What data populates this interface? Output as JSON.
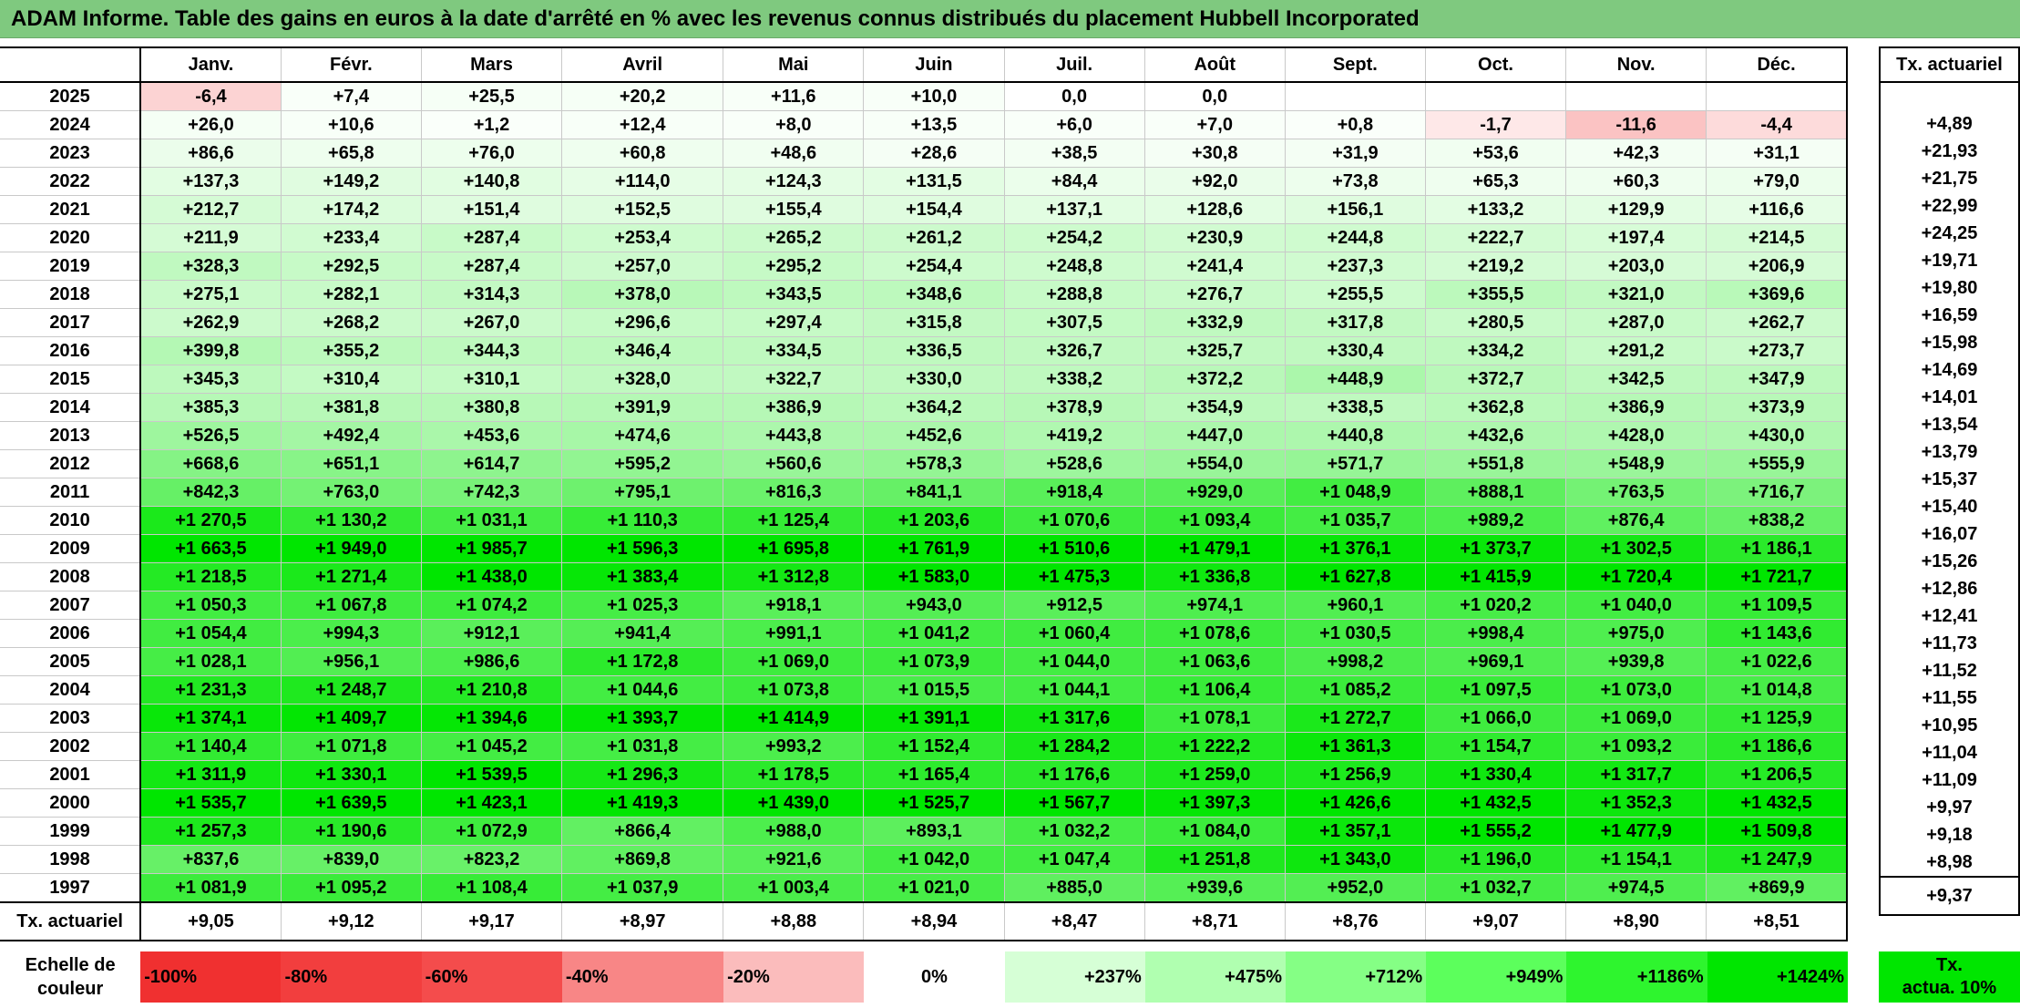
{
  "title": "ADAM Informe. Table des gains en euros à la date d'arrêté en % avec les revenus connus distribués du placement Hubbell Incorporated",
  "chart_data": {
    "type": "heatmap",
    "columns": [
      "Janv.",
      "Févr.",
      "Mars",
      "Avril",
      "Mai",
      "Juin",
      "Juil.",
      "Août",
      "Sept.",
      "Oct.",
      "Nov.",
      "Déc."
    ],
    "tx_header": "Tx. actuariel",
    "rows": [
      {
        "year": "2025",
        "values": [
          "-6,4",
          "+7,4",
          "+25,5",
          "+20,2",
          "+11,6",
          "+10,0",
          "0,0",
          "0,0",
          "",
          "",
          "",
          ""
        ],
        "tx": ""
      },
      {
        "year": "2024",
        "values": [
          "+26,0",
          "+10,6",
          "+1,2",
          "+12,4",
          "+8,0",
          "+13,5",
          "+6,0",
          "+7,0",
          "+0,8",
          "-1,7",
          "-11,6",
          "-4,4"
        ],
        "tx": "+4,89"
      },
      {
        "year": "2023",
        "values": [
          "+86,6",
          "+65,8",
          "+76,0",
          "+60,8",
          "+48,6",
          "+28,6",
          "+38,5",
          "+30,8",
          "+31,9",
          "+53,6",
          "+42,3",
          "+31,1"
        ],
        "tx": "+21,93"
      },
      {
        "year": "2022",
        "values": [
          "+137,3",
          "+149,2",
          "+140,8",
          "+114,0",
          "+124,3",
          "+131,5",
          "+84,4",
          "+92,0",
          "+73,8",
          "+65,3",
          "+60,3",
          "+79,0"
        ],
        "tx": "+21,75"
      },
      {
        "year": "2021",
        "values": [
          "+212,7",
          "+174,2",
          "+151,4",
          "+152,5",
          "+155,4",
          "+154,4",
          "+137,1",
          "+128,6",
          "+156,1",
          "+133,2",
          "+129,9",
          "+116,6"
        ],
        "tx": "+22,99"
      },
      {
        "year": "2020",
        "values": [
          "+211,9",
          "+233,4",
          "+287,4",
          "+253,4",
          "+265,2",
          "+261,2",
          "+254,2",
          "+230,9",
          "+244,8",
          "+222,7",
          "+197,4",
          "+214,5"
        ],
        "tx": "+24,25"
      },
      {
        "year": "2019",
        "values": [
          "+328,3",
          "+292,5",
          "+287,4",
          "+257,0",
          "+295,2",
          "+254,4",
          "+248,8",
          "+241,4",
          "+237,3",
          "+219,2",
          "+203,0",
          "+206,9"
        ],
        "tx": "+19,71"
      },
      {
        "year": "2018",
        "values": [
          "+275,1",
          "+282,1",
          "+314,3",
          "+378,0",
          "+343,5",
          "+348,6",
          "+288,8",
          "+276,7",
          "+255,5",
          "+355,5",
          "+321,0",
          "+369,6"
        ],
        "tx": "+19,80"
      },
      {
        "year": "2017",
        "values": [
          "+262,9",
          "+268,2",
          "+267,0",
          "+296,6",
          "+297,4",
          "+315,8",
          "+307,5",
          "+332,9",
          "+317,8",
          "+280,5",
          "+287,0",
          "+262,7"
        ],
        "tx": "+16,59"
      },
      {
        "year": "2016",
        "values": [
          "+399,8",
          "+355,2",
          "+344,3",
          "+346,4",
          "+334,5",
          "+336,5",
          "+326,7",
          "+325,7",
          "+330,4",
          "+334,2",
          "+291,2",
          "+273,7"
        ],
        "tx": "+15,98"
      },
      {
        "year": "2015",
        "values": [
          "+345,3",
          "+310,4",
          "+310,1",
          "+328,0",
          "+322,7",
          "+330,0",
          "+338,2",
          "+372,2",
          "+448,9",
          "+372,7",
          "+342,5",
          "+347,9"
        ],
        "tx": "+14,69"
      },
      {
        "year": "2014",
        "values": [
          "+385,3",
          "+381,8",
          "+380,8",
          "+391,9",
          "+386,9",
          "+364,2",
          "+378,9",
          "+354,9",
          "+338,5",
          "+362,8",
          "+386,9",
          "+373,9"
        ],
        "tx": "+14,01"
      },
      {
        "year": "2013",
        "values": [
          "+526,5",
          "+492,4",
          "+453,6",
          "+474,6",
          "+443,8",
          "+452,6",
          "+419,2",
          "+447,0",
          "+440,8",
          "+432,6",
          "+428,0",
          "+430,0"
        ],
        "tx": "+13,54"
      },
      {
        "year": "2012",
        "values": [
          "+668,6",
          "+651,1",
          "+614,7",
          "+595,2",
          "+560,6",
          "+578,3",
          "+528,6",
          "+554,0",
          "+571,7",
          "+551,8",
          "+548,9",
          "+555,9"
        ],
        "tx": "+13,79"
      },
      {
        "year": "2011",
        "values": [
          "+842,3",
          "+763,0",
          "+742,3",
          "+795,1",
          "+816,3",
          "+841,1",
          "+918,4",
          "+929,0",
          "+1 048,9",
          "+888,1",
          "+763,5",
          "+716,7"
        ],
        "tx": "+15,37"
      },
      {
        "year": "2010",
        "values": [
          "+1 270,5",
          "+1 130,2",
          "+1 031,1",
          "+1 110,3",
          "+1 125,4",
          "+1 203,6",
          "+1 070,6",
          "+1 093,4",
          "+1 035,7",
          "+989,2",
          "+876,4",
          "+838,2"
        ],
        "tx": "+15,40"
      },
      {
        "year": "2009",
        "values": [
          "+1 663,5",
          "+1 949,0",
          "+1 985,7",
          "+1 596,3",
          "+1 695,8",
          "+1 761,9",
          "+1 510,6",
          "+1 479,1",
          "+1 376,1",
          "+1 373,7",
          "+1 302,5",
          "+1 186,1"
        ],
        "tx": "+16,07"
      },
      {
        "year": "2008",
        "values": [
          "+1 218,5",
          "+1 271,4",
          "+1 438,0",
          "+1 383,4",
          "+1 312,8",
          "+1 583,0",
          "+1 475,3",
          "+1 336,8",
          "+1 627,8",
          "+1 415,9",
          "+1 720,4",
          "+1 721,7"
        ],
        "tx": "+15,26"
      },
      {
        "year": "2007",
        "values": [
          "+1 050,3",
          "+1 067,8",
          "+1 074,2",
          "+1 025,3",
          "+918,1",
          "+943,0",
          "+912,5",
          "+974,1",
          "+960,1",
          "+1 020,2",
          "+1 040,0",
          "+1 109,5"
        ],
        "tx": "+12,86"
      },
      {
        "year": "2006",
        "values": [
          "+1 054,4",
          "+994,3",
          "+912,1",
          "+941,4",
          "+991,1",
          "+1 041,2",
          "+1 060,4",
          "+1 078,6",
          "+1 030,5",
          "+998,4",
          "+975,0",
          "+1 143,6"
        ],
        "tx": "+12,41"
      },
      {
        "year": "2005",
        "values": [
          "+1 028,1",
          "+956,1",
          "+986,6",
          "+1 172,8",
          "+1 069,0",
          "+1 073,9",
          "+1 044,0",
          "+1 063,6",
          "+998,2",
          "+969,1",
          "+939,8",
          "+1 022,6"
        ],
        "tx": "+11,73"
      },
      {
        "year": "2004",
        "values": [
          "+1 231,3",
          "+1 248,7",
          "+1 210,8",
          "+1 044,6",
          "+1 073,8",
          "+1 015,5",
          "+1 044,1",
          "+1 106,4",
          "+1 085,2",
          "+1 097,5",
          "+1 073,0",
          "+1 014,8"
        ],
        "tx": "+11,52"
      },
      {
        "year": "2003",
        "values": [
          "+1 374,1",
          "+1 409,7",
          "+1 394,6",
          "+1 393,7",
          "+1 414,9",
          "+1 391,1",
          "+1 317,6",
          "+1 078,1",
          "+1 272,7",
          "+1 066,0",
          "+1 069,0",
          "+1 125,9"
        ],
        "tx": "+11,55"
      },
      {
        "year": "2002",
        "values": [
          "+1 140,4",
          "+1 071,8",
          "+1 045,2",
          "+1 031,8",
          "+993,2",
          "+1 152,4",
          "+1 284,2",
          "+1 222,2",
          "+1 361,3",
          "+1 154,7",
          "+1 093,2",
          "+1 186,6"
        ],
        "tx": "+10,95"
      },
      {
        "year": "2001",
        "values": [
          "+1 311,9",
          "+1 330,1",
          "+1 539,5",
          "+1 296,3",
          "+1 178,5",
          "+1 165,4",
          "+1 176,6",
          "+1 259,0",
          "+1 256,9",
          "+1 330,4",
          "+1 317,7",
          "+1 206,5"
        ],
        "tx": "+11,04"
      },
      {
        "year": "2000",
        "values": [
          "+1 535,7",
          "+1 639,5",
          "+1 423,1",
          "+1 419,3",
          "+1 439,0",
          "+1 525,7",
          "+1 567,7",
          "+1 397,3",
          "+1 426,6",
          "+1 432,5",
          "+1 352,3",
          "+1 432,5"
        ],
        "tx": "+11,09"
      },
      {
        "year": "1999",
        "values": [
          "+1 257,3",
          "+1 190,6",
          "+1 072,9",
          "+866,4",
          "+988,0",
          "+893,1",
          "+1 032,2",
          "+1 084,0",
          "+1 357,1",
          "+1 555,2",
          "+1 477,9",
          "+1 509,8"
        ],
        "tx": "+9,97"
      },
      {
        "year": "1998",
        "values": [
          "+837,6",
          "+839,0",
          "+823,2",
          "+869,8",
          "+921,6",
          "+1 042,0",
          "+1 047,4",
          "+1 251,8",
          "+1 343,0",
          "+1 196,0",
          "+1 154,1",
          "+1 247,9"
        ],
        "tx": "+9,18"
      },
      {
        "year": "1997",
        "values": [
          "+1 081,9",
          "+1 095,2",
          "+1 108,4",
          "+1 037,9",
          "+1 003,4",
          "+1 021,0",
          "+885,0",
          "+939,6",
          "+952,0",
          "+1 032,7",
          "+974,5",
          "+869,9"
        ],
        "tx": "+8,98"
      }
    ],
    "footer": {
      "label": "Tx. actuariel",
      "values": [
        "+9,05",
        "+9,12",
        "+9,17",
        "+8,97",
        "+8,88",
        "+8,94",
        "+8,47",
        "+8,71",
        "+8,76",
        "+9,07",
        "+8,90",
        "+8,51"
      ],
      "tx": "+9,37"
    },
    "legend": {
      "label_line1": "Echelle de",
      "label_line2": "couleur",
      "items": [
        {
          "label": "-100%",
          "color": "#f03030"
        },
        {
          "label": "-80%",
          "color": "#f23e3e"
        },
        {
          "label": "-60%",
          "color": "#f44c4c"
        },
        {
          "label": "-40%",
          "color": "#f88686"
        },
        {
          "label": "-20%",
          "color": "#fbbcbc"
        },
        {
          "label": "0%",
          "color": "#ffffff"
        },
        {
          "label": "+237%",
          "color": "#d6ffd6"
        },
        {
          "label": "+475%",
          "color": "#b0ffb0"
        },
        {
          "label": "+712%",
          "color": "#85ff85"
        },
        {
          "label": "+949%",
          "color": "#5cff5c"
        },
        {
          "label": "+1186%",
          "color": "#2ef52e"
        },
        {
          "label": "+1424%",
          "color": "#00e600"
        }
      ],
      "tx_line1": "Tx.",
      "tx_line2": "actua. 10%"
    }
  }
}
